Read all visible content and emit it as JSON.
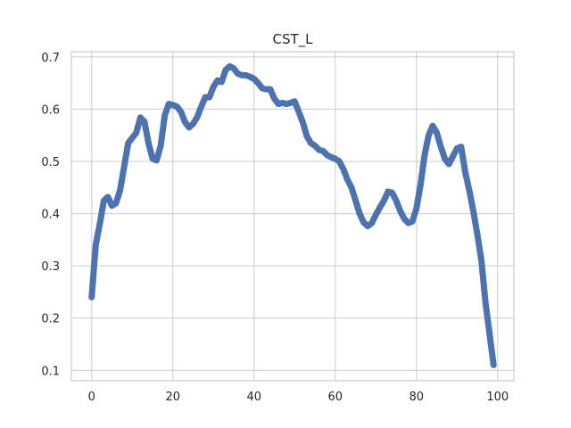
{
  "chart_data": {
    "type": "line",
    "title": "CST_L",
    "xlabel": "",
    "ylabel": "",
    "xlim": [
      -5,
      104
    ],
    "ylim": [
      0.08,
      0.71
    ],
    "xticks": [
      0,
      20,
      40,
      60,
      80,
      100
    ],
    "xtick_labels": [
      "0",
      "20",
      "40",
      "60",
      "80",
      "100"
    ],
    "yticks": [
      0.1,
      0.2,
      0.3,
      0.4,
      0.5,
      0.6,
      0.7
    ],
    "ytick_labels": [
      "0.1",
      "0.2",
      "0.3",
      "0.4",
      "0.5",
      "0.6",
      "0.7"
    ],
    "grid": true,
    "series": [
      {
        "color": "#4c72b0",
        "x": [
          0,
          1,
          2,
          3,
          4,
          5,
          6,
          7,
          8,
          9,
          10,
          11,
          12,
          13,
          14,
          15,
          16,
          17,
          18,
          19,
          20,
          21,
          22,
          23,
          24,
          25,
          26,
          27,
          28,
          29,
          30,
          31,
          32,
          33,
          34,
          35,
          36,
          37,
          38,
          39,
          40,
          41,
          42,
          43,
          44,
          45,
          46,
          47,
          48,
          49,
          50,
          51,
          52,
          53,
          54,
          55,
          56,
          57,
          58,
          59,
          60,
          61,
          62,
          63,
          64,
          65,
          66,
          67,
          68,
          69,
          70,
          71,
          72,
          73,
          74,
          75,
          76,
          77,
          78,
          79,
          80,
          81,
          82,
          83,
          84,
          85,
          86,
          87,
          88,
          89,
          90,
          91,
          92,
          93,
          94,
          95,
          96,
          97,
          98,
          99
        ],
        "y": [
          0.24,
          0.34,
          0.38,
          0.425,
          0.432,
          0.415,
          0.42,
          0.445,
          0.49,
          0.535,
          0.545,
          0.555,
          0.584,
          0.576,
          0.535,
          0.505,
          0.502,
          0.53,
          0.588,
          0.61,
          0.608,
          0.605,
          0.595,
          0.575,
          0.565,
          0.572,
          0.585,
          0.605,
          0.623,
          0.623,
          0.643,
          0.655,
          0.652,
          0.675,
          0.682,
          0.678,
          0.668,
          0.665,
          0.665,
          0.662,
          0.658,
          0.65,
          0.64,
          0.638,
          0.638,
          0.62,
          0.61,
          0.612,
          0.61,
          0.612,
          0.615,
          0.595,
          0.575,
          0.548,
          0.535,
          0.53,
          0.522,
          0.52,
          0.512,
          0.508,
          0.505,
          0.5,
          0.485,
          0.465,
          0.45,
          0.425,
          0.4,
          0.383,
          0.376,
          0.382,
          0.398,
          0.412,
          0.425,
          0.442,
          0.44,
          0.425,
          0.405,
          0.39,
          0.382,
          0.385,
          0.41,
          0.455,
          0.512,
          0.55,
          0.568,
          0.555,
          0.528,
          0.505,
          0.495,
          0.51,
          0.525,
          0.528,
          0.48,
          0.445,
          0.405,
          0.36,
          0.31,
          0.23,
          0.17,
          0.11
        ]
      }
    ]
  }
}
